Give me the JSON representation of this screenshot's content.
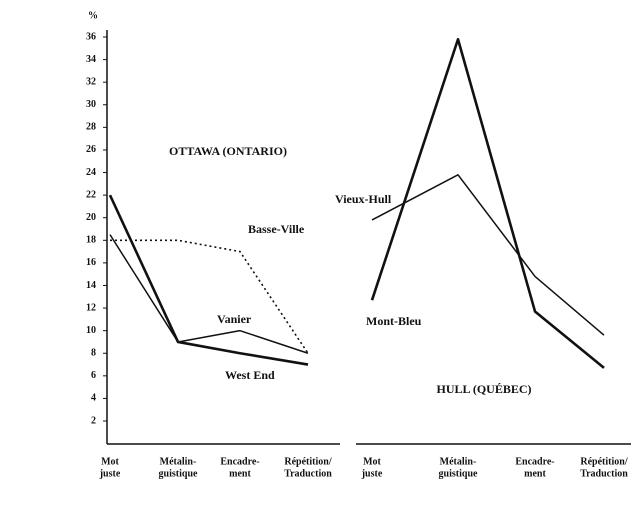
{
  "chart_data": [
    {
      "type": "line",
      "title": "OTTAWA (ONTARIO)",
      "y_label": "%",
      "categories": [
        [
          "Mot",
          "juste"
        ],
        [
          "Métalin-",
          "guistique"
        ],
        [
          "Encadre-",
          "ment"
        ],
        [
          "Répétition/",
          "Traduction"
        ]
      ],
      "series": [
        {
          "name": "Basse-Ville",
          "color": "#111111",
          "style": "dotted",
          "values": [
            18,
            18,
            17,
            8
          ]
        },
        {
          "name": "Vanier",
          "color": "#111111",
          "style": "solid",
          "values": [
            18.5,
            9,
            10,
            8
          ]
        },
        {
          "name": "West End",
          "color": "#111111",
          "style": "bold",
          "values": [
            22,
            9,
            8,
            7
          ]
        }
      ],
      "ylim": [
        0,
        36
      ],
      "yticks": [
        2,
        4,
        6,
        8,
        10,
        12,
        14,
        16,
        18,
        20,
        22,
        24,
        26,
        28,
        30,
        32,
        34,
        36
      ]
    },
    {
      "type": "line",
      "title": "HULL (QUÉBEC)",
      "categories": [
        [
          "Mot",
          "juste"
        ],
        [
          "Métalin-",
          "guistique"
        ],
        [
          "Encadre-",
          "ment"
        ],
        [
          "Répétition/",
          "Traduction"
        ]
      ],
      "series": [
        {
          "name": "Vieux-Hull",
          "color": "#111111",
          "style": "solid",
          "values": [
            19.8,
            23.8,
            14.8,
            9.6
          ]
        },
        {
          "name": "Mont-Bleu",
          "color": "#111111",
          "style": "bold",
          "values": [
            12.7,
            35.8,
            11.7,
            6.7
          ]
        }
      ],
      "ylim": [
        0,
        36
      ]
    }
  ]
}
